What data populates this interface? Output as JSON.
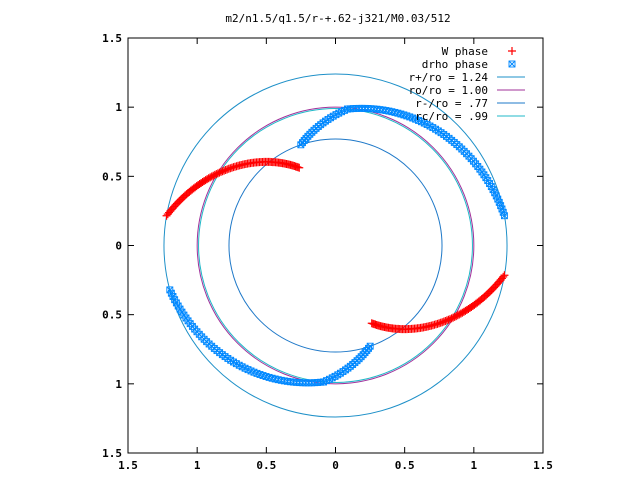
{
  "chart_data": {
    "type": "scatter",
    "title": "m2/n1.5/q1.5/r-+.62-j321/M0.03/512",
    "xlabel": "",
    "ylabel": "",
    "xlim": [
      -1.5,
      1.5
    ],
    "ylim": [
      -1.5,
      1.5
    ],
    "grid": false,
    "legend_position": "top-right",
    "x_ticks": [
      -1.5,
      -1,
      -0.5,
      0,
      0.5,
      1,
      1.5
    ],
    "y_ticks": [
      -1.5,
      -1,
      -0.5,
      0,
      0.5,
      1,
      1.5
    ],
    "x_tick_labels": [
      "1.5",
      "1",
      "0.5",
      "0",
      "0.5",
      "1",
      "1.5"
    ],
    "y_tick_labels": [
      "1.5",
      "1",
      "0.5",
      "0",
      "0.5",
      "1",
      "1.5"
    ],
    "series": [
      {
        "name": "W phase",
        "kind": "points",
        "marker": "plus",
        "color": "#ff0000",
        "segments": [
          {
            "r_start": 1.24,
            "theta_start_deg": 170,
            "r_end": 0.62,
            "theta_end_deg": 115,
            "theta_step_deg": 0.6
          },
          {
            "r_start": 1.24,
            "theta_start_deg": -10,
            "r_end": 0.62,
            "theta_end_deg": -65,
            "theta_step_deg": 0.6
          }
        ]
      },
      {
        "name": "drho phase",
        "kind": "points",
        "marker": "cross-square",
        "color": "#0088ff",
        "segments": [
          {
            "r_start": 0.77,
            "theta_start_deg": 109,
            "r_end": 0.99,
            "theta_end_deg": 85,
            "theta_step_deg": 1.2
          },
          {
            "r_start": 0.99,
            "theta_start_deg": 85,
            "r_end": 1.24,
            "theta_end_deg": 10,
            "theta_step_deg": 1.2
          },
          {
            "r_start": 0.77,
            "theta_start_deg": -71,
            "r_end": 0.99,
            "theta_end_deg": -95,
            "theta_step_deg": 1.2
          },
          {
            "r_start": 0.99,
            "theta_start_deg": -95,
            "r_end": 1.24,
            "theta_end_deg": -165,
            "theta_step_deg": 1.2
          }
        ]
      },
      {
        "name": "r+/ro = 1.24",
        "kind": "circle",
        "radius": 1.24,
        "color": "#1e90c8"
      },
      {
        "name": "ro/ro = 1.00",
        "kind": "circle",
        "radius": 1.0,
        "color": "#a0309a"
      },
      {
        "name": "r-/ro = .77",
        "kind": "circle",
        "radius": 0.77,
        "color": "#1e78c8"
      },
      {
        "name": "rc/ro = .99",
        "kind": "circle",
        "radius": 0.99,
        "color": "#20b8c8"
      }
    ]
  }
}
